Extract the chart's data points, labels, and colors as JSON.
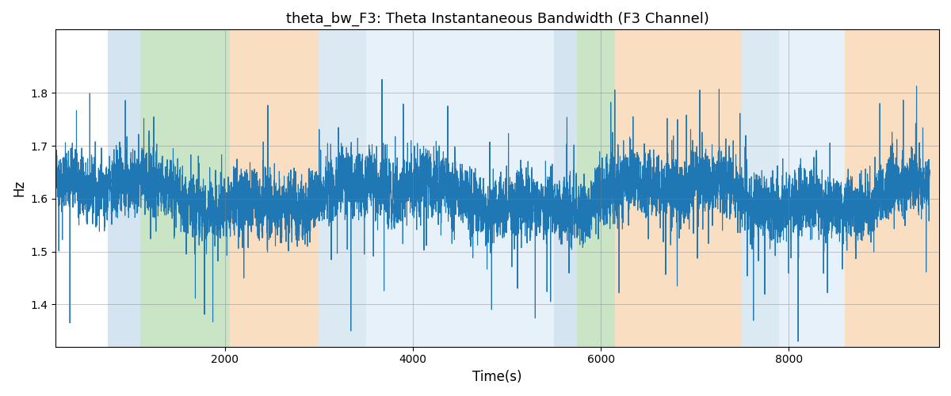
{
  "title": "theta_bw_F3: Theta Instantaneous Bandwidth (F3 Channel)",
  "xlabel": "Time(s)",
  "ylabel": "Hz",
  "xlim": [
    200,
    9600
  ],
  "ylim": [
    1.32,
    1.92
  ],
  "yticks": [
    1.4,
    1.5,
    1.6,
    1.7,
    1.8
  ],
  "xticks": [
    2000,
    4000,
    6000,
    8000
  ],
  "line_color": "#1f77b4",
  "line_width": 0.8,
  "seed": 42,
  "n_points": 9500,
  "mean": 1.605,
  "background_regions": [
    {
      "start": 750,
      "end": 1100,
      "color": "#b8d4e8",
      "alpha": 0.6
    },
    {
      "start": 1100,
      "end": 2050,
      "color": "#a8d5a0",
      "alpha": 0.6
    },
    {
      "start": 2050,
      "end": 3000,
      "color": "#f5c99a",
      "alpha": 0.6
    },
    {
      "start": 3000,
      "end": 3500,
      "color": "#b8d4e8",
      "alpha": 0.5
    },
    {
      "start": 3500,
      "end": 5500,
      "color": "#d8e8f5",
      "alpha": 0.6
    },
    {
      "start": 5500,
      "end": 5750,
      "color": "#b8d4e8",
      "alpha": 0.6
    },
    {
      "start": 5750,
      "end": 6150,
      "color": "#a8d5a0",
      "alpha": 0.6
    },
    {
      "start": 6150,
      "end": 7500,
      "color": "#f5c99a",
      "alpha": 0.6
    },
    {
      "start": 7500,
      "end": 7900,
      "color": "#b8d4e8",
      "alpha": 0.5
    },
    {
      "start": 7900,
      "end": 8600,
      "color": "#d8e8f5",
      "alpha": 0.6
    },
    {
      "start": 8600,
      "end": 9600,
      "color": "#f5c99a",
      "alpha": 0.6
    }
  ],
  "figsize": [
    12,
    5
  ],
  "dpi": 100
}
